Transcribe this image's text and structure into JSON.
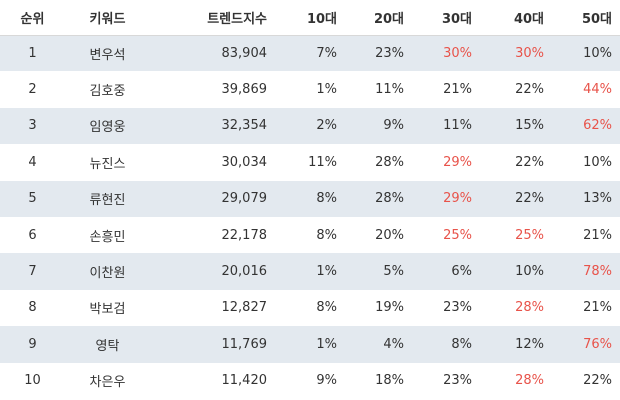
{
  "table": {
    "header": [
      "순위",
      "키워드",
      "트렌드지수",
      "10대",
      "20대",
      "30대",
      "40대",
      "50대"
    ],
    "rows": [
      [
        "1",
        "변우석",
        "83,904",
        "7%",
        "23%",
        "30%",
        "30%",
        "10%"
      ],
      [
        "2",
        "김호중",
        "39,869",
        "1%",
        "11%",
        "21%",
        "22%",
        "44%"
      ],
      [
        "3",
        "임영웅",
        "32,354",
        "2%",
        "9%",
        "11%",
        "15%",
        "62%"
      ],
      [
        "4",
        "뉴진스",
        "30,034",
        "11%",
        "28%",
        "29%",
        "22%",
        "10%"
      ],
      [
        "5",
        "류현진",
        "29,079",
        "8%",
        "28%",
        "29%",
        "22%",
        "13%"
      ],
      [
        "6",
        "손흥민",
        "22,178",
        "8%",
        "20%",
        "25%",
        "25%",
        "21%"
      ],
      [
        "7",
        "이찬원",
        "20,016",
        "1%",
        "5%",
        "6%",
        "10%",
        "78%"
      ],
      [
        "8",
        "박보검",
        "12,827",
        "8%",
        "19%",
        "23%",
        "28%",
        "21%"
      ],
      [
        "9",
        "영탁",
        "11,769",
        "1%",
        "4%",
        "8%",
        "12%",
        "76%"
      ],
      [
        "10",
        "차은우",
        "11,420",
        "9%",
        "18%",
        "23%",
        "28%",
        "22%"
      ]
    ],
    "highlight_color": "#e8534a",
    "highlighted_cells": [
      [
        0,
        5
      ],
      [
        0,
        6
      ],
      [
        1,
        7
      ],
      [
        2,
        7
      ],
      [
        3,
        5
      ],
      [
        4,
        5
      ],
      [
        5,
        5
      ],
      [
        5,
        6
      ],
      [
        6,
        7
      ],
      [
        7,
        6
      ],
      [
        8,
        7
      ],
      [
        9,
        6
      ]
    ]
  }
}
